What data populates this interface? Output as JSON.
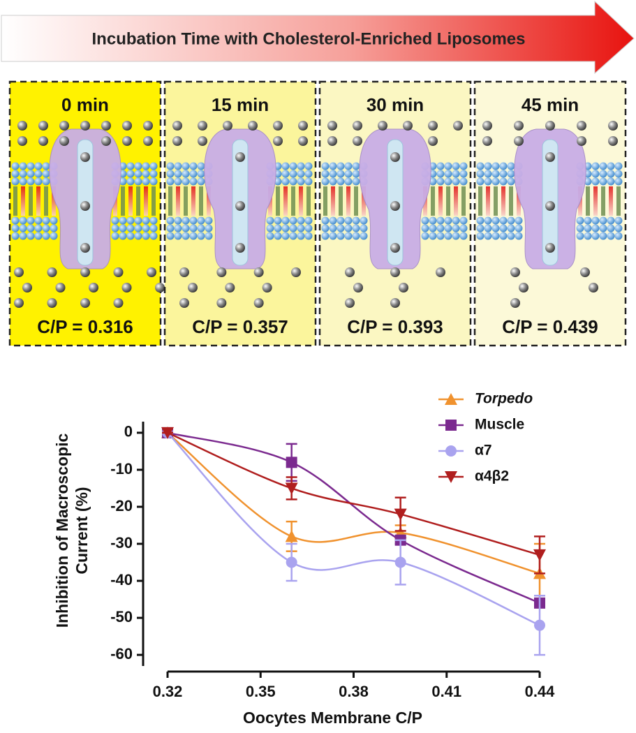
{
  "banner": "Incubation Time with Cholesterol-Enriched Liposomes",
  "panels": [
    {
      "time": "0 min",
      "ratio": "C/P = 0.316"
    },
    {
      "time": "15 min",
      "ratio": "C/P = 0.357"
    },
    {
      "time": "30 min",
      "ratio": "C/P = 0.393"
    },
    {
      "time": "45 min",
      "ratio": "C/P = 0.439"
    }
  ],
  "chart_data": {
    "type": "line",
    "xlabel": "Oocytes Membrane C/P",
    "ylabel": "Inhibition of Macroscopic Current (%)",
    "x": [
      0.316,
      0.357,
      0.393,
      0.439
    ],
    "xlim": [
      0.316,
      0.439
    ],
    "xticks": [
      {
        "value": 0.316,
        "label": "0.32"
      },
      {
        "value": 0.34675,
        "label": "0.35"
      },
      {
        "value": 0.3775,
        "label": "0.38"
      },
      {
        "value": 0.40825,
        "label": "0.41"
      },
      {
        "value": 0.439,
        "label": "0.44"
      }
    ],
    "ylim": [
      -63,
      3
    ],
    "yticks": [
      0,
      -10,
      -20,
      -30,
      -40,
      -50,
      -60
    ],
    "legend": "upper right",
    "series": [
      {
        "name": "Torpedo",
        "color": "#f0922e",
        "marker": "triangle-up",
        "font_style": "italic",
        "values": [
          0,
          -28,
          -27,
          -38
        ],
        "errors": [
          0,
          4,
          2,
          8
        ]
      },
      {
        "name": "Muscle",
        "color": "#7b2a8f",
        "marker": "square",
        "font_style": "normal",
        "values": [
          0,
          -8,
          -29,
          -46
        ],
        "errors": [
          0,
          5,
          1,
          1
        ]
      },
      {
        "name": "α7",
        "color": "#a9a3ef",
        "marker": "circle",
        "font_style": "normal",
        "values": [
          0,
          -35,
          -35,
          -52
        ],
        "errors": [
          0,
          5,
          6,
          8
        ]
      },
      {
        "name": "α4β2",
        "color": "#b01e1e",
        "marker": "triangle-down",
        "font_style": "normal",
        "values": [
          0,
          -15,
          -22,
          -33
        ],
        "errors": [
          0,
          3,
          4.5,
          5
        ]
      }
    ]
  }
}
